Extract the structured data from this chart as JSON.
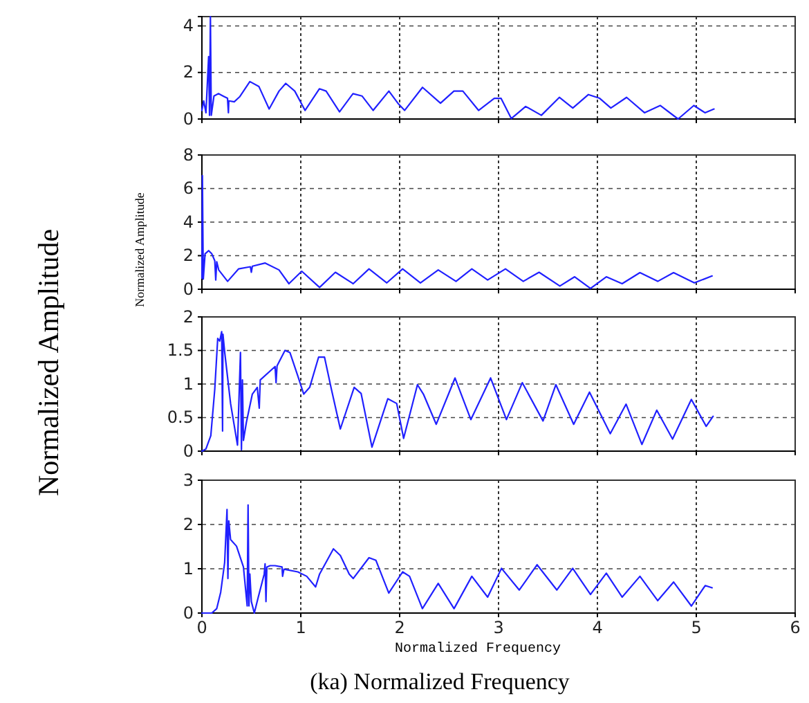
{
  "chart_data": [
    {
      "type": "line",
      "xlim": [
        0,
        6
      ],
      "xticks": [
        0,
        1,
        2,
        3,
        4,
        5,
        6
      ],
      "ylim": [
        0,
        4.4
      ],
      "yticks": [
        0,
        2,
        4
      ],
      "grid": true,
      "tick_labels": "y",
      "series": [
        {
          "color": "#2020ff",
          "x": [
            0,
            0.018,
            0.041,
            0.068,
            0.077,
            0.086,
            0.095,
            0.122,
            0.168,
            0.213,
            0.259,
            0.268,
            0.272,
            0.327,
            0.381,
            0.485,
            0.576,
            0.68,
            0.78,
            0.848,
            0.939,
            1.043,
            1.188,
            1.256,
            1.392,
            1.528,
            1.619,
            1.732,
            1.891,
            1.982,
            2.05,
            2.231,
            2.413,
            2.549,
            2.639,
            2.798,
            2.957,
            3.025,
            3.129,
            3.274,
            3.433,
            3.615,
            3.751,
            3.909,
            4.023,
            4.136,
            4.295,
            4.476,
            4.635,
            4.816,
            4.975,
            5.088,
            5.179
          ],
          "values": [
            0.37,
            0.78,
            0.27,
            2.68,
            0.16,
            4.4,
            0.16,
            0.99,
            1.09,
            0.99,
            0.89,
            0.27,
            0.78,
            0.74,
            0.95,
            1.61,
            1.4,
            0.43,
            1.2,
            1.53,
            1.2,
            0.37,
            1.3,
            1.2,
            0.31,
            1.09,
            0.99,
            0.37,
            1.2,
            0.68,
            0.37,
            1.36,
            0.68,
            1.2,
            1.2,
            0.37,
            0.89,
            0.89,
            0.02,
            0.54,
            0.16,
            0.93,
            0.47,
            1.05,
            0.89,
            0.47,
            0.93,
            0.27,
            0.58,
            0,
            0.58,
            0.27,
            0.43
          ]
        }
      ]
    },
    {
      "type": "line",
      "xlim": [
        0,
        6
      ],
      "xticks": [
        0,
        1,
        2,
        3,
        4,
        5,
        6
      ],
      "ylim": [
        0,
        8
      ],
      "yticks": [
        0,
        2,
        4,
        6,
        8
      ],
      "grid": true,
      "tick_labels": "y",
      "ylabel": "Normalized Amplitude",
      "series": [
        {
          "color": "#2020ff",
          "x": [
            0,
            0.005,
            0.014,
            0.032,
            0.068,
            0.1,
            0.13,
            0.14,
            0.15,
            0.17,
            0.26,
            0.37,
            0.49,
            0.5,
            0.51,
            0.64,
            0.78,
            0.88,
            1.01,
            1.19,
            1.35,
            1.53,
            1.69,
            1.87,
            2.03,
            2.21,
            2.39,
            2.57,
            2.73,
            2.89,
            3.07,
            3.25,
            3.41,
            3.62,
            3.77,
            3.93,
            4.09,
            4.25,
            4.43,
            4.61,
            4.77,
            4.98,
            5.16
          ],
          "values": [
            0.66,
            6.77,
            0.6,
            2.11,
            2.3,
            2.11,
            1.7,
            0.55,
            1.64,
            1.15,
            0.47,
            1.21,
            1.34,
            1.01,
            1.37,
            1.56,
            1.15,
            0.33,
            1.07,
            0.11,
            1.01,
            0.33,
            1.21,
            0.38,
            1.21,
            0.38,
            1.15,
            0.47,
            1.21,
            0.55,
            1.21,
            0.47,
            1.01,
            0.19,
            0.74,
            0.05,
            0.74,
            0.33,
            0.99,
            0.47,
            0.99,
            0.38,
            0.79
          ]
        }
      ]
    },
    {
      "type": "line",
      "xlim": [
        0,
        6
      ],
      "xticks": [
        0,
        1,
        2,
        3,
        4,
        5,
        6
      ],
      "ylim": [
        0,
        2
      ],
      "yticks": [
        0,
        0.5,
        1,
        1.5,
        2
      ],
      "grid": true,
      "tick_labels": "y",
      "series": [
        {
          "color": "#2020ff",
          "x": [
            0,
            0.04,
            0.09,
            0.13,
            0.16,
            0.18,
            0.2,
            0.209,
            0.213,
            0.23,
            0.29,
            0.36,
            0.39,
            0.4,
            0.41,
            0.42,
            0.45,
            0.51,
            0.56,
            0.58,
            0.59,
            0.74,
            0.75,
            0.76,
            0.84,
            0.89,
            0.97,
            1.03,
            1.09,
            1.18,
            1.24,
            1.31,
            1.4,
            1.54,
            1.61,
            1.72,
            1.88,
            1.97,
            2.04,
            2.18,
            2.24,
            2.37,
            2.56,
            2.72,
            2.92,
            3.08,
            3.24,
            3.45,
            3.58,
            3.76,
            3.92,
            4.13,
            4.29,
            4.45,
            4.6,
            4.76,
            4.95,
            5.1,
            5.17
          ],
          "values": [
            0,
            0.03,
            0.23,
            0.92,
            1.68,
            1.64,
            1.78,
            0.3,
            1.74,
            1.48,
            0.71,
            0.09,
            1.47,
            0.02,
            1.06,
            0.16,
            0.43,
            0.85,
            0.95,
            0.64,
            1.06,
            1.26,
            1.02,
            1.27,
            1.5,
            1.47,
            1.12,
            0.85,
            0.95,
            1.4,
            1.4,
            0.92,
            0.33,
            0.95,
            0.86,
            0.06,
            0.78,
            0.71,
            0.19,
            0.99,
            0.85,
            0.4,
            1.09,
            0.47,
            1.09,
            0.47,
            1.02,
            0.45,
            0.99,
            0.4,
            0.88,
            0.26,
            0.7,
            0.1,
            0.61,
            0.18,
            0.77,
            0.37,
            0.52
          ]
        }
      ]
    },
    {
      "type": "line",
      "xlim": [
        0,
        6
      ],
      "xticks": [
        0,
        1,
        2,
        3,
        4,
        5,
        6
      ],
      "ylim": [
        0,
        3
      ],
      "yticks": [
        0,
        1,
        2,
        3
      ],
      "grid": true,
      "xlabel": "Normalized Frequency",
      "annotations": [
        "Normalized Amplitude",
        "(ka) Normalized Frequency"
      ],
      "series": [
        {
          "color": "#2020ff",
          "x": [
            0,
            0.1,
            0.15,
            0.19,
            0.23,
            0.254,
            0.263,
            0.272,
            0.29,
            0.35,
            0.42,
            0.458,
            0.467,
            0.476,
            0.485,
            0.5,
            0.53,
            0.57,
            0.63,
            0.639,
            0.648,
            0.657,
            0.69,
            0.74,
            0.81,
            0.816,
            0.83,
            0.97,
            1.06,
            1.15,
            1.19,
            1.33,
            1.4,
            1.49,
            1.53,
            1.69,
            1.76,
            1.89,
            2.03,
            2.1,
            2.23,
            2.39,
            2.55,
            2.73,
            2.89,
            3.03,
            3.21,
            3.39,
            3.59,
            3.75,
            3.93,
            4.09,
            4.25,
            4.43,
            4.61,
            4.77,
            4.95,
            5.09,
            5.16
          ],
          "values": [
            0,
            0,
            0.1,
            0.47,
            1.14,
            2.34,
            0.78,
            2.08,
            1.66,
            1.51,
            1.04,
            0.16,
            2.44,
            0.16,
            0.88,
            0.26,
            0,
            0.36,
            0.88,
            1.11,
            0.26,
            1.04,
            1.07,
            1.07,
            1.04,
            0.83,
            0.99,
            0.93,
            0.83,
            0.59,
            0.88,
            1.45,
            1.3,
            0.88,
            0.78,
            1.25,
            1.19,
            0.45,
            0.93,
            0.83,
            0.1,
            0.67,
            0.1,
            0.83,
            0.36,
            1.01,
            0.52,
            1.09,
            0.52,
            1.01,
            0.42,
            0.9,
            0.36,
            0.83,
            0.28,
            0.7,
            0.16,
            0.62,
            0.57
          ]
        }
      ]
    }
  ]
}
